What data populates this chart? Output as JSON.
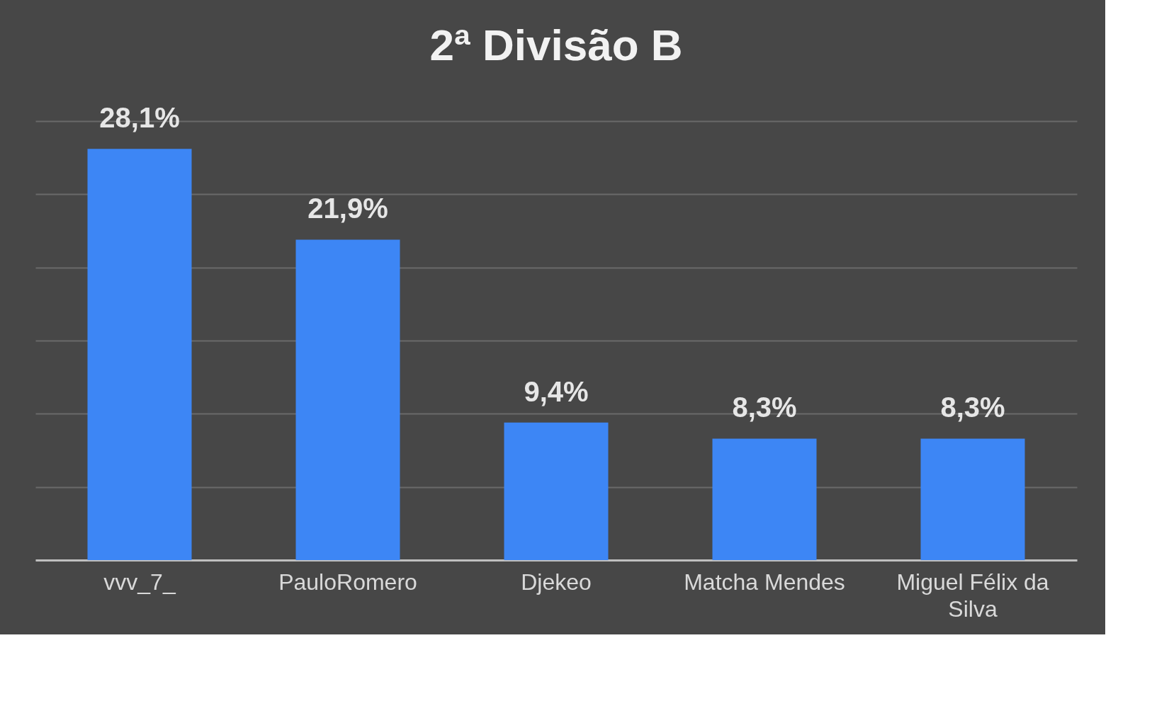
{
  "chart_data": {
    "type": "bar",
    "title": "2ª Divisão B",
    "categories": [
      "vvv_7_",
      "PauloRomero",
      "Djekeo",
      "Matcha Mendes",
      "Miguel Félix da Silva"
    ],
    "values": [
      28.1,
      21.9,
      9.4,
      8.3,
      8.3
    ],
    "value_labels": [
      "28,1%",
      "21,9%",
      "9,4%",
      "8,3%",
      "8,3%"
    ],
    "color": "#3d86f5",
    "ylim": [
      0,
      30
    ],
    "yticks": [
      {
        "value": 0,
        "label": null
      },
      {
        "value": 5,
        "label": null
      },
      {
        "value": 10,
        "label": null
      },
      {
        "value": 15,
        "label": null
      },
      {
        "value": 20,
        "label": null
      },
      {
        "value": 25,
        "label": null
      },
      {
        "value": 30,
        "label": null
      }
    ],
    "grid": "y",
    "tick_labels": "x"
  }
}
